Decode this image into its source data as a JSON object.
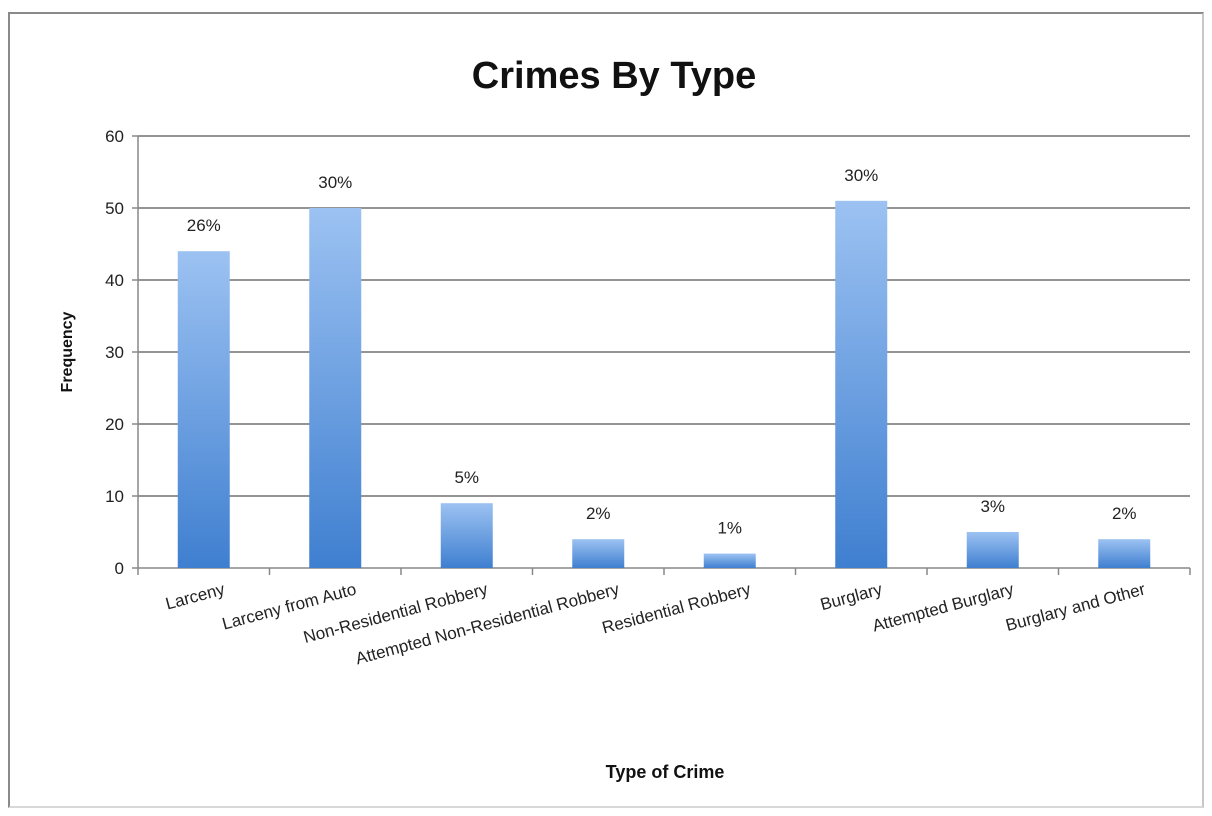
{
  "chart_data": {
    "type": "bar",
    "title": "Crimes By Type",
    "xlabel": "Type of Crime",
    "ylabel": "Frequency",
    "ylim": [
      0,
      60
    ],
    "yticks": [
      0,
      10,
      20,
      30,
      40,
      50,
      60
    ],
    "grid": true,
    "categories": [
      "Larceny",
      "Larceny from Auto",
      "Non-Residential Robbery",
      "Attempted Non-Residential Robbery",
      "Residential Robbery",
      "Burglary",
      "Attempted Burglary",
      "Burglary and Other"
    ],
    "values": [
      44,
      50,
      9,
      4,
      2,
      51,
      5,
      4
    ],
    "data_labels": [
      "26%",
      "30%",
      "5%",
      "2%",
      "1%",
      "30%",
      "3%",
      "2%"
    ],
    "bar_color_top": "#9cc2f2",
    "bar_color_bottom": "#3f7fd0"
  }
}
